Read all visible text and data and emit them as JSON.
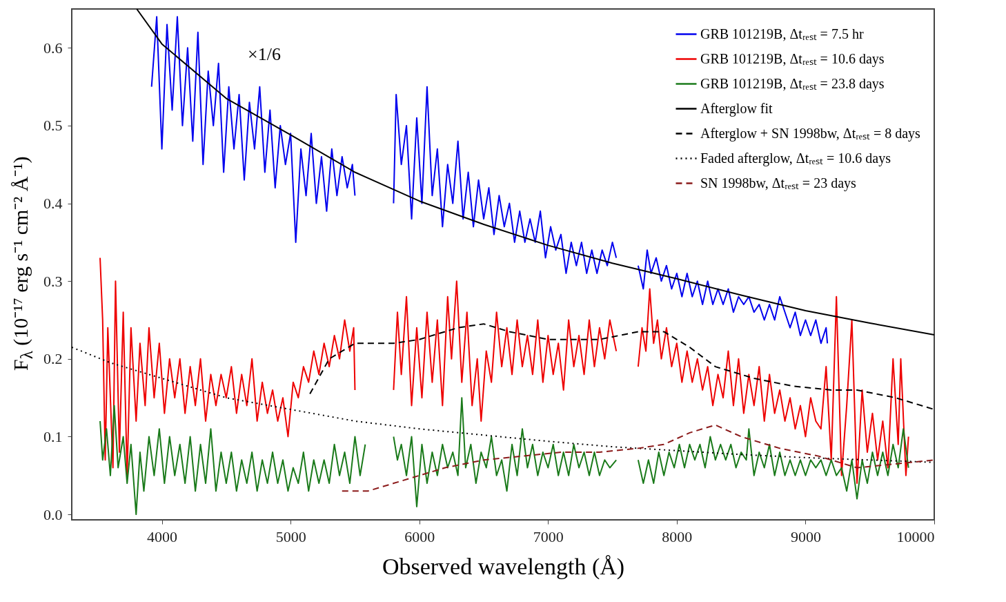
{
  "chart_data": {
    "type": "line",
    "xlabel": "Observed wavelength (Å)",
    "ylabel": "F$_{λ}$ (10⁻¹⁷ erg s⁻¹ cm⁻² Å⁻¹)",
    "xlim": [
      3300,
      10000
    ],
    "ylim": [
      -0.007,
      0.65
    ],
    "xticks": [
      4000,
      5000,
      6000,
      7000,
      8000,
      9000,
      10000
    ],
    "yticks": [
      {
        "value": 0,
        "label": "0.0"
      },
      0.1,
      0.2,
      0.3,
      0.4,
      0.5,
      0.6
    ],
    "legend": "top right",
    "annotations": [
      "×1/6"
    ],
    "series": [
      {
        "name": "GRB 101219B, Δtᵣₑₛₜ = 7.5 hr",
        "color": "#0000ee",
        "line_style": "solid",
        "x": [
          3920,
          3960,
          4000,
          4040,
          4080,
          4120,
          4160,
          4200,
          4240,
          4280,
          4320,
          4360,
          4400,
          4440,
          4480,
          4520,
          4560,
          4600,
          4640,
          4680,
          4720,
          4760,
          4800,
          4840,
          4880,
          4920,
          4960,
          5000,
          5040,
          5080,
          5120,
          5160,
          5200,
          5240,
          5280,
          5320,
          5360,
          5400,
          5440,
          5480,
          5500,
          5650,
          5800,
          5820,
          5860,
          5900,
          5940,
          5980,
          6020,
          6060,
          6100,
          6140,
          6180,
          6220,
          6260,
          6300,
          6340,
          6380,
          6420,
          6460,
          6500,
          6540,
          6580,
          6620,
          6660,
          6700,
          6740,
          6780,
          6820,
          6860,
          6900,
          6940,
          6980,
          7020,
          7060,
          7100,
          7140,
          7180,
          7220,
          7260,
          7300,
          7340,
          7380,
          7420,
          7460,
          7500,
          7530,
          7600,
          7700,
          7740,
          7770,
          7800,
          7840,
          7880,
          7920,
          7960,
          8000,
          8040,
          8080,
          8120,
          8160,
          8200,
          8240,
          8280,
          8320,
          8360,
          8400,
          8440,
          8480,
          8520,
          8560,
          8600,
          8640,
          8680,
          8720,
          8760,
          8800,
          8840,
          8880,
          8920,
          8960,
          9000,
          9040,
          9080,
          9120,
          9160,
          9170
        ],
        "values": [
          0.55,
          0.64,
          0.47,
          0.63,
          0.52,
          0.64,
          0.5,
          0.6,
          0.48,
          0.62,
          0.45,
          0.57,
          0.5,
          0.58,
          0.44,
          0.55,
          0.47,
          0.54,
          0.43,
          0.53,
          0.47,
          0.55,
          0.44,
          0.52,
          0.42,
          0.5,
          0.45,
          0.49,
          0.35,
          0.47,
          0.41,
          0.49,
          0.4,
          0.46,
          0.39,
          0.47,
          0.41,
          0.46,
          0.42,
          0.45,
          0.41,
          null,
          0.4,
          0.54,
          0.45,
          0.5,
          0.38,
          0.51,
          0.4,
          0.55,
          0.41,
          0.47,
          0.37,
          0.45,
          0.4,
          0.48,
          0.38,
          0.44,
          0.37,
          0.43,
          0.38,
          0.42,
          0.36,
          0.41,
          0.37,
          0.4,
          0.35,
          0.39,
          0.35,
          0.38,
          0.35,
          0.39,
          0.33,
          0.37,
          0.34,
          0.36,
          0.31,
          0.35,
          0.32,
          0.35,
          0.31,
          0.34,
          0.31,
          0.34,
          0.32,
          0.35,
          0.33,
          null,
          0.32,
          0.29,
          0.34,
          0.31,
          0.33,
          0.3,
          0.32,
          0.29,
          0.31,
          0.28,
          0.31,
          0.28,
          0.3,
          0.27,
          0.3,
          0.27,
          0.29,
          0.27,
          0.29,
          0.26,
          0.28,
          0.27,
          0.28,
          0.26,
          0.27,
          0.25,
          0.27,
          0.25,
          0.28,
          0.26,
          0.24,
          0.26,
          0.23,
          0.25,
          0.23,
          0.25,
          0.22,
          0.24,
          0.22
        ]
      },
      {
        "name": "GRB 101219B, Δtᵣₑₛₜ = 10.6 days",
        "color": "#ee0000",
        "line_style": "solid",
        "x": [
          3520,
          3540,
          3560,
          3580,
          3620,
          3640,
          3670,
          3700,
          3730,
          3760,
          3800,
          3830,
          3870,
          3900,
          3940,
          3980,
          4020,
          4060,
          4100,
          4140,
          4180,
          4220,
          4260,
          4300,
          4340,
          4380,
          4420,
          4460,
          4500,
          4540,
          4580,
          4620,
          4660,
          4700,
          4740,
          4780,
          4820,
          4860,
          4900,
          4940,
          4980,
          5020,
          5060,
          5100,
          5140,
          5180,
          5220,
          5260,
          5300,
          5340,
          5380,
          5420,
          5460,
          5490,
          5500,
          5650,
          5800,
          5830,
          5860,
          5900,
          5940,
          5980,
          6020,
          6060,
          6100,
          6140,
          6180,
          6220,
          6250,
          6290,
          6330,
          6370,
          6410,
          6450,
          6480,
          6520,
          6560,
          6600,
          6640,
          6680,
          6720,
          6760,
          6800,
          6840,
          6880,
          6920,
          6960,
          7000,
          7040,
          7080,
          7120,
          7160,
          7200,
          7240,
          7280,
          7320,
          7360,
          7400,
          7440,
          7480,
          7530,
          7600,
          7700,
          7730,
          7760,
          7790,
          7820,
          7850,
          7880,
          7920,
          7960,
          8000,
          8040,
          8080,
          8120,
          8160,
          8200,
          8240,
          8280,
          8320,
          8360,
          8400,
          8440,
          8480,
          8520,
          8560,
          8600,
          8640,
          8680,
          8720,
          8760,
          8800,
          8840,
          8880,
          8920,
          8960,
          9000,
          9040,
          9080,
          9120,
          9160,
          9200,
          9240,
          9280,
          9320,
          9360,
          9400,
          9440,
          9480,
          9520,
          9560,
          9600,
          9640,
          9680,
          9720,
          9740,
          9780,
          9800
        ],
        "values": [
          0.33,
          0.25,
          0.07,
          0.24,
          0.06,
          0.3,
          0.08,
          0.26,
          0.05,
          0.24,
          0.12,
          0.22,
          0.14,
          0.24,
          0.15,
          0.22,
          0.13,
          0.2,
          0.15,
          0.2,
          0.13,
          0.19,
          0.14,
          0.2,
          0.12,
          0.18,
          0.14,
          0.18,
          0.15,
          0.19,
          0.13,
          0.18,
          0.14,
          0.2,
          0.12,
          0.17,
          0.13,
          0.16,
          0.12,
          0.15,
          0.1,
          0.17,
          0.15,
          0.19,
          0.17,
          0.21,
          0.18,
          0.22,
          0.19,
          0.23,
          0.2,
          0.25,
          0.21,
          0.24,
          0.16,
          null,
          0.16,
          0.26,
          0.18,
          0.28,
          0.14,
          0.24,
          0.15,
          0.26,
          0.17,
          0.25,
          0.14,
          0.28,
          0.2,
          0.3,
          0.17,
          0.26,
          0.14,
          0.2,
          0.12,
          0.21,
          0.17,
          0.26,
          0.19,
          0.24,
          0.18,
          0.25,
          0.19,
          0.23,
          0.18,
          0.25,
          0.17,
          0.23,
          0.18,
          0.22,
          0.16,
          0.25,
          0.19,
          0.23,
          0.18,
          0.25,
          0.19,
          0.24,
          0.2,
          0.25,
          0.21,
          null,
          0.19,
          0.24,
          0.21,
          0.29,
          0.22,
          0.25,
          0.2,
          0.24,
          0.19,
          0.22,
          0.17,
          0.21,
          0.17,
          0.2,
          0.16,
          0.19,
          0.14,
          0.18,
          0.15,
          0.21,
          0.14,
          0.2,
          0.13,
          0.18,
          0.14,
          0.19,
          0.12,
          0.18,
          0.13,
          0.16,
          0.12,
          0.15,
          0.11,
          0.14,
          0.1,
          0.15,
          0.12,
          0.11,
          0.19,
          0.07,
          0.28,
          0.05,
          0.14,
          0.25,
          0.04,
          0.16,
          0.08,
          0.13,
          0.07,
          0.12,
          0.06,
          0.2,
          0.09,
          0.2,
          0.05,
          0.1
        ]
      },
      {
        "name": "GRB 101219B, Δtᵣₑₛₜ = 23.8 days",
        "color": "#1a7a1a",
        "line_style": "solid",
        "x": [
          3520,
          3540,
          3570,
          3600,
          3630,
          3660,
          3700,
          3730,
          3760,
          3800,
          3830,
          3860,
          3900,
          3940,
          3980,
          4020,
          4060,
          4100,
          4140,
          4180,
          4220,
          4260,
          4300,
          4340,
          4380,
          4420,
          4460,
          4500,
          4540,
          4580,
          4620,
          4660,
          4700,
          4740,
          4780,
          4820,
          4860,
          4900,
          4940,
          4980,
          5020,
          5060,
          5100,
          5140,
          5180,
          5220,
          5260,
          5300,
          5340,
          5380,
          5420,
          5460,
          5500,
          5540,
          5580,
          5700,
          5800,
          5830,
          5860,
          5900,
          5940,
          5980,
          6020,
          6060,
          6100,
          6140,
          6180,
          6220,
          6260,
          6300,
          6330,
          6360,
          6400,
          6440,
          6480,
          6520,
          6560,
          6600,
          6640,
          6680,
          6720,
          6760,
          6800,
          6840,
          6880,
          6920,
          6960,
          7000,
          7040,
          7080,
          7120,
          7160,
          7200,
          7240,
          7280,
          7320,
          7360,
          7400,
          7440,
          7480,
          7530,
          7600,
          7700,
          7740,
          7780,
          7820,
          7860,
          7900,
          7940,
          7980,
          8020,
          8060,
          8100,
          8140,
          8180,
          8220,
          8260,
          8300,
          8340,
          8380,
          8420,
          8460,
          8500,
          8540,
          8560,
          8600,
          8640,
          8680,
          8720,
          8760,
          8800,
          8840,
          8880,
          8920,
          8960,
          9000,
          9040,
          9080,
          9120,
          9160,
          9200,
          9240,
          9280,
          9320,
          9360,
          9400,
          9440,
          9480,
          9520,
          9560,
          9600,
          9640,
          9680,
          9720,
          9760,
          9800
        ],
        "values": [
          0.12,
          0.07,
          0.11,
          0.05,
          0.14,
          0.06,
          0.1,
          0.04,
          0.09,
          0.0,
          0.08,
          0.03,
          0.1,
          0.05,
          0.11,
          0.04,
          0.1,
          0.05,
          0.09,
          0.04,
          0.1,
          0.03,
          0.09,
          0.04,
          0.11,
          0.03,
          0.08,
          0.04,
          0.08,
          0.03,
          0.07,
          0.04,
          0.08,
          0.03,
          0.07,
          0.04,
          0.08,
          0.04,
          0.07,
          0.03,
          0.06,
          0.04,
          0.08,
          0.03,
          0.07,
          0.04,
          0.07,
          0.04,
          0.09,
          0.05,
          0.08,
          0.04,
          0.1,
          0.05,
          0.09,
          null,
          0.1,
          0.07,
          0.09,
          0.05,
          0.1,
          0.01,
          0.09,
          0.04,
          0.08,
          0.05,
          0.09,
          0.06,
          0.08,
          0.05,
          0.15,
          0.06,
          0.09,
          0.04,
          0.08,
          0.06,
          0.1,
          0.05,
          0.07,
          0.03,
          0.09,
          0.05,
          0.11,
          0.06,
          0.09,
          0.05,
          0.08,
          0.06,
          0.09,
          0.05,
          0.08,
          0.05,
          0.09,
          0.06,
          0.08,
          0.05,
          0.08,
          0.05,
          0.07,
          0.06,
          0.07,
          null,
          0.07,
          0.04,
          0.07,
          0.04,
          0.08,
          0.05,
          0.08,
          0.06,
          0.09,
          0.06,
          0.09,
          0.07,
          0.09,
          0.06,
          0.1,
          0.07,
          0.09,
          0.07,
          0.09,
          0.06,
          0.08,
          0.07,
          0.11,
          0.05,
          0.08,
          0.06,
          0.09,
          0.05,
          0.08,
          0.05,
          0.07,
          0.05,
          0.07,
          0.05,
          0.07,
          0.06,
          0.07,
          0.05,
          0.07,
          0.05,
          0.06,
          0.03,
          0.07,
          0.02,
          0.07,
          0.04,
          0.08,
          0.05,
          0.08,
          0.05,
          0.09,
          0.06,
          0.11,
          0.06
        ]
      },
      {
        "name": "Afterglow fit",
        "color": "#000000",
        "line_style": "solid",
        "x": [
          3805,
          4000,
          4500,
          5000,
          5500,
          6000,
          6500,
          7000,
          7500,
          8000,
          8500,
          9000,
          9500,
          10000
        ],
        "values": [
          0.65,
          0.605,
          0.535,
          0.488,
          0.44,
          0.403,
          0.373,
          0.346,
          0.323,
          0.303,
          0.282,
          0.262,
          0.246,
          0.231
        ]
      },
      {
        "name": "Afterglow + SN 1998bw, Δtᵣₑₛₜ = 8 days",
        "color": "#000000",
        "line_style": "dashed",
        "x": [
          5150,
          5300,
          5500,
          5800,
          6000,
          6300,
          6500,
          6700,
          7000,
          7400,
          7700,
          7900,
          8100,
          8300,
          8600,
          8900,
          9200,
          9400,
          9700,
          10000
        ],
        "values": [
          0.155,
          0.2,
          0.22,
          0.22,
          0.225,
          0.24,
          0.245,
          0.235,
          0.225,
          0.225,
          0.235,
          0.235,
          0.215,
          0.19,
          0.175,
          0.165,
          0.16,
          0.16,
          0.15,
          0.135
        ]
      },
      {
        "name": "Faded afterglow, Δtᵣₑₛₜ = 10.6 days",
        "color": "#000000",
        "line_style": "dotted",
        "x": [
          3300,
          3600,
          4000,
          4500,
          5000,
          5500,
          6000,
          6500,
          7000,
          7500,
          8000,
          8500,
          9000,
          9500,
          10000
        ],
        "values": [
          0.215,
          0.195,
          0.175,
          0.15,
          0.135,
          0.12,
          0.11,
          0.102,
          0.094,
          0.087,
          0.082,
          0.077,
          0.073,
          0.07,
          0.067
        ]
      },
      {
        "name": "SN 1998bw, Δtᵣₑₛₜ = 23 days",
        "color": "#8b1a1a",
        "line_style": "dashed",
        "x": [
          5400,
          5600,
          5800,
          6000,
          6200,
          6500,
          6800,
          7100,
          7400,
          7700,
          7900,
          8100,
          8300,
          8500,
          8800,
          9100,
          9400,
          9700,
          10000
        ],
        "values": [
          0.03,
          0.03,
          0.04,
          0.05,
          0.06,
          0.07,
          0.075,
          0.08,
          0.08,
          0.085,
          0.09,
          0.105,
          0.115,
          0.1,
          0.085,
          0.075,
          0.06,
          0.065,
          0.07
        ]
      }
    ]
  }
}
